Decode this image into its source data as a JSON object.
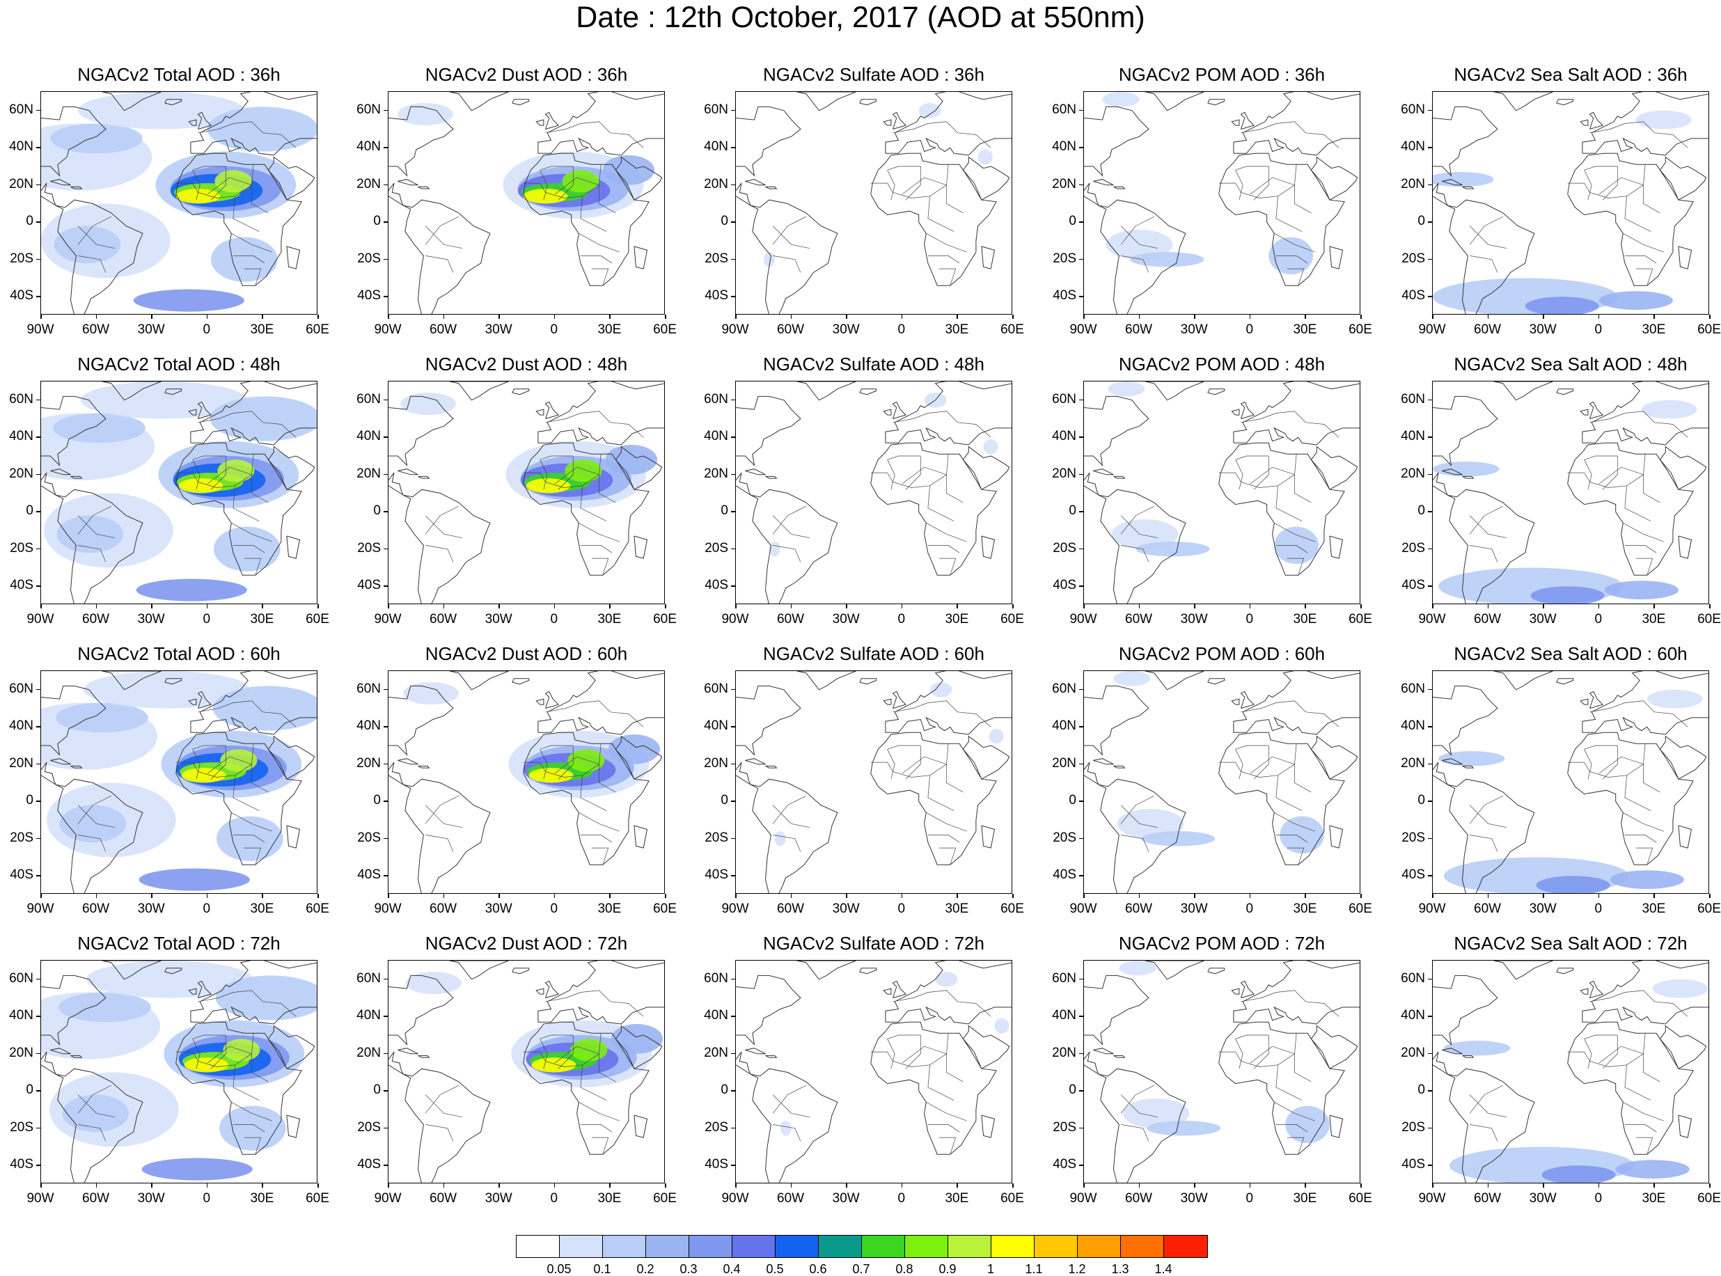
{
  "title": "Date : 12th October, 2017 (AOD at 550nm)",
  "rows": [
    {
      "panels": [
        "NGACv2 Total AOD : 36h",
        "NGACv2 Dust AOD : 36h",
        "NGACv2 Sulfate AOD : 36h",
        "NGACv2 POM AOD : 36h",
        "NGACv2 Sea Salt AOD : 36h"
      ]
    },
    {
      "panels": [
        "NGACv2 Total AOD : 48h",
        "NGACv2 Dust AOD : 48h",
        "NGACv2 Sulfate AOD : 48h",
        "NGACv2 POM AOD : 48h",
        "NGACv2 Sea Salt AOD : 48h"
      ]
    },
    {
      "panels": [
        "NGACv2 Total AOD : 60h",
        "NGACv2 Dust AOD : 60h",
        "NGACv2 Sulfate AOD : 60h",
        "NGACv2 POM AOD : 60h",
        "NGACv2 Sea Salt AOD : 60h"
      ]
    },
    {
      "panels": [
        "NGACv2 Total AOD : 72h",
        "NGACv2 Dust AOD : 72h",
        "NGACv2 Sulfate AOD : 72h",
        "NGACv2 POM AOD : 72h",
        "NGACv2 Sea Salt  AOD : 72h"
      ]
    }
  ],
  "axes": {
    "lat_labels": [
      "60N",
      "40N",
      "20N",
      "0",
      "20S",
      "40S"
    ],
    "lon_labels": [
      "90W",
      "60W",
      "30W",
      "0",
      "30E",
      "60E"
    ]
  },
  "colorbar": {
    "colors": [
      "#ffffff",
      "#d6e2fb",
      "#b8cdf7",
      "#9ab4f3",
      "#7f98ef",
      "#6673ec",
      "#1463f0",
      "#0a9a8c",
      "#3ad620",
      "#7ef00e",
      "#b8f33a",
      "#ffff00",
      "#ffc800",
      "#ff9f00",
      "#ff7000",
      "#ff2000"
    ],
    "labels": [
      "0.05",
      "0.1",
      "0.2",
      "0.3",
      "0.4",
      "0.5",
      "0.6",
      "0.7",
      "0.8",
      "0.9",
      "1",
      "1.1",
      "1.2",
      "1.3",
      "1.4"
    ]
  },
  "chart_data": {
    "type": "heatmap",
    "title": "Date : 12th October, 2017 (AOD at 550nm)",
    "x_range": [
      "90W",
      "60E"
    ],
    "y_range": [
      "50S",
      "70N"
    ],
    "levels": [
      0.05,
      0.1,
      0.2,
      0.3,
      0.4,
      0.5,
      0.6,
      0.7,
      0.8,
      0.9,
      1,
      1.1,
      1.2,
      1.3,
      1.4
    ],
    "panels": [
      {
        "name": "NGACv2 Total AOD : 36h",
        "species": "total",
        "hour": 36
      },
      {
        "name": "NGACv2 Dust AOD : 36h",
        "species": "dust",
        "hour": 36
      },
      {
        "name": "NGACv2 Sulfate AOD : 36h",
        "species": "sulfate",
        "hour": 36
      },
      {
        "name": "NGACv2 POM AOD : 36h",
        "species": "pom",
        "hour": 36
      },
      {
        "name": "NGACv2 Sea Salt AOD : 36h",
        "species": "seasalt",
        "hour": 36
      },
      {
        "name": "NGACv2 Total AOD : 48h",
        "species": "total",
        "hour": 48
      },
      {
        "name": "NGACv2 Dust AOD : 48h",
        "species": "dust",
        "hour": 48
      },
      {
        "name": "NGACv2 Sulfate AOD : 48h",
        "species": "sulfate",
        "hour": 48
      },
      {
        "name": "NGACv2 POM AOD : 48h",
        "species": "pom",
        "hour": 48
      },
      {
        "name": "NGACv2 Sea Salt AOD : 48h",
        "species": "seasalt",
        "hour": 48
      },
      {
        "name": "NGACv2 Total AOD : 60h",
        "species": "total",
        "hour": 60
      },
      {
        "name": "NGACv2 Dust AOD : 60h",
        "species": "dust",
        "hour": 60
      },
      {
        "name": "NGACv2 Sulfate AOD : 60h",
        "species": "sulfate",
        "hour": 60
      },
      {
        "name": "NGACv2 POM AOD : 60h",
        "species": "pom",
        "hour": 60
      },
      {
        "name": "NGACv2 Sea Salt AOD : 60h",
        "species": "seasalt",
        "hour": 60
      },
      {
        "name": "NGACv2 Total AOD : 72h",
        "species": "total",
        "hour": 72
      },
      {
        "name": "NGACv2 Dust AOD : 72h",
        "species": "dust",
        "hour": 72
      },
      {
        "name": "NGACv2 Sulfate AOD : 72h",
        "species": "sulfate",
        "hour": 72
      },
      {
        "name": "NGACv2 POM AOD : 72h",
        "species": "pom",
        "hour": 72
      },
      {
        "name": "NGACv2 Sea Salt  AOD : 72h",
        "species": "seasalt",
        "hour": 72
      }
    ]
  }
}
